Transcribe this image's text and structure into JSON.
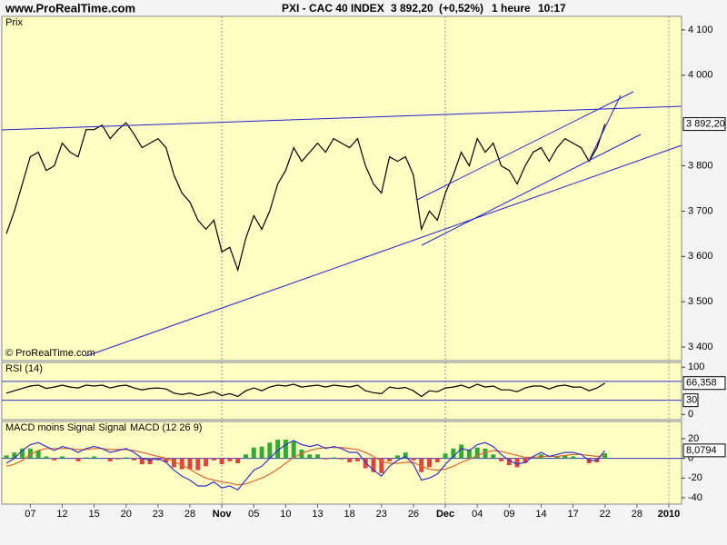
{
  "header": {
    "site": "www.ProRealTime.com",
    "title": "PXI - CAC 40 INDEX",
    "price": "3 892,20",
    "change": "(+0,52%)",
    "interval": "1 heure",
    "time": "10:17"
  },
  "chart_data": [
    {
      "type": "line",
      "title": "Prix",
      "watermark": "© ProRealTime.com",
      "color": "#000000",
      "values": [
        3650,
        3700,
        3760,
        3820,
        3830,
        3790,
        3800,
        3850,
        3830,
        3820,
        3880,
        3880,
        3890,
        3860,
        3880,
        3895,
        3870,
        3840,
        3850,
        3860,
        3840,
        3780,
        3740,
        3720,
        3680,
        3660,
        3680,
        3610,
        3620,
        3570,
        3640,
        3690,
        3660,
        3700,
        3760,
        3790,
        3840,
        3810,
        3830,
        3850,
        3830,
        3860,
        3850,
        3840,
        3860,
        3800,
        3760,
        3740,
        3820,
        3810,
        3820,
        3780,
        3660,
        3700,
        3680,
        3740,
        3780,
        3830,
        3800,
        3860,
        3830,
        3850,
        3800,
        3790,
        3760,
        3800,
        3830,
        3840,
        3810,
        3840,
        3860,
        3850,
        3840,
        3810,
        3840,
        3892.2,
        null,
        null,
        null,
        null,
        null,
        null,
        null,
        null
      ],
      "last_value": {
        "value": 3892.2,
        "label": "3 892,20"
      },
      "ylim": [
        3370,
        4130
      ],
      "yticks": [
        {
          "value": 3400,
          "label": "3 400"
        },
        {
          "value": 3500,
          "label": "3 500"
        },
        {
          "value": 3600,
          "label": "3 600"
        },
        {
          "value": 3700,
          "label": "3 700"
        },
        {
          "value": 3800,
          "label": "3 800"
        },
        {
          "value": 4000,
          "label": "4 000"
        },
        {
          "value": 4100,
          "label": "4 100"
        }
      ]
    },
    {
      "type": "line",
      "title": "RSI (14)",
      "color": "#000000",
      "level_color": "#3333cc",
      "values": [
        45,
        50,
        55,
        60,
        62,
        55,
        58,
        62,
        58,
        56,
        62,
        60,
        62,
        56,
        60,
        62,
        56,
        52,
        55,
        56,
        54,
        45,
        42,
        45,
        40,
        44,
        48,
        40,
        44,
        38,
        50,
        56,
        50,
        58,
        62,
        60,
        64,
        58,
        60,
        62,
        58,
        62,
        60,
        58,
        62,
        50,
        46,
        44,
        58,
        55,
        57,
        50,
        38,
        50,
        48,
        56,
        58,
        62,
        56,
        64,
        58,
        60,
        52,
        52,
        48,
        56,
        60,
        60,
        54,
        60,
        62,
        58,
        58,
        50,
        56,
        66.358,
        null,
        null,
        null,
        null,
        null,
        null,
        null,
        null
      ],
      "last_value": {
        "value": 66.358,
        "label": "66,358"
      },
      "levels": [
        30,
        70
      ],
      "ylim": [
        -11,
        110
      ],
      "yticks": [
        0,
        100
      ]
    },
    {
      "type": "macd",
      "zero_color": "#3333cc",
      "categories": [
        null,
        null,
        null,
        "07",
        null,
        null,
        null,
        "12",
        null,
        null,
        null,
        "15",
        null,
        null,
        null,
        "20",
        null,
        null,
        null,
        "23",
        null,
        null,
        null,
        "28",
        null,
        null,
        null,
        "Nov",
        null,
        null,
        null,
        "05",
        null,
        null,
        null,
        "10",
        null,
        null,
        null,
        "13",
        null,
        null,
        null,
        "18",
        null,
        null,
        null,
        "23",
        null,
        null,
        null,
        "26",
        null,
        null,
        null,
        "Dec",
        null,
        null,
        null,
        "04",
        null,
        null,
        null,
        "09",
        null,
        null,
        null,
        "14",
        null,
        null,
        null,
        "17",
        null,
        null,
        null,
        "22",
        null,
        null,
        null,
        "28",
        null,
        null,
        null,
        "2010"
      ],
      "series": [
        {
          "name": "MACD moins Signal",
          "color": "#33aa33",
          "negative_color": "#dd4444",
          "values": [
            3,
            6,
            10,
            10,
            8,
            2,
            -2,
            2,
            0,
            -3,
            1,
            2,
            0,
            -3,
            -1,
            1,
            -2,
            -6,
            -6,
            -2,
            -4,
            -9,
            -11,
            -11,
            -12,
            -8,
            -2,
            -6,
            -3,
            -5,
            4,
            11,
            12,
            16,
            19,
            19,
            17,
            9,
            4,
            4,
            -1,
            1,
            -1,
            -4,
            -3,
            -10,
            -14,
            -15,
            -3,
            3,
            6,
            -2,
            -14,
            -9,
            -4,
            5,
            10,
            14,
            9,
            11,
            10,
            4,
            -3,
            -7,
            -9,
            -5,
            1,
            4,
            0,
            2,
            3,
            2,
            0,
            -5,
            -4,
            5.08,
            null,
            null,
            null,
            null,
            null,
            null,
            null,
            null
          ]
        },
        {
          "name": "Signal",
          "color": "#dd6633",
          "values": [
            -8,
            -6,
            -2,
            4,
            8,
            10,
            10,
            10,
            10,
            9,
            9,
            10,
            10,
            9,
            9,
            9,
            8,
            6,
            4,
            2,
            0,
            -3,
            -7,
            -11,
            -16,
            -20,
            -22,
            -24,
            -25,
            -27,
            -26,
            -23,
            -20,
            -16,
            -11,
            -5,
            1,
            5,
            8,
            10,
            11,
            11,
            11,
            10,
            9,
            6,
            2,
            -3,
            -5,
            -5,
            -4,
            -4,
            -8,
            -11,
            -12,
            -11,
            -8,
            -4,
            -1,
            3,
            6,
            8,
            7,
            5,
            3,
            1,
            1,
            2,
            2,
            2,
            3,
            4,
            4,
            3,
            2,
            3,
            null,
            null,
            null,
            null,
            null,
            null,
            null,
            null
          ]
        },
        {
          "name": "MACD (12 26 9)",
          "color": "#3333cc",
          "values": [
            -5,
            0,
            8,
            14,
            16,
            12,
            8,
            12,
            10,
            6,
            10,
            12,
            10,
            6,
            8,
            10,
            6,
            0,
            -2,
            0,
            -4,
            -12,
            -18,
            -22,
            -28,
            -28,
            -24,
            -30,
            -28,
            -32,
            -22,
            -12,
            -8,
            0,
            8,
            14,
            18,
            14,
            12,
            14,
            10,
            12,
            10,
            6,
            6,
            -4,
            -12,
            -18,
            -8,
            -2,
            2,
            -6,
            -22,
            -20,
            -16,
            -6,
            2,
            10,
            8,
            14,
            16,
            12,
            4,
            -2,
            -6,
            -4,
            2,
            6,
            2,
            4,
            6,
            6,
            4,
            -2,
            -2,
            8.0794,
            null,
            null,
            null,
            null,
            null,
            null,
            null,
            null
          ]
        }
      ],
      "last_value": {
        "value": 8.0794,
        "label": "8,0794"
      },
      "ylim": [
        -46.5,
        37.5
      ],
      "yticks": [
        -40,
        -20,
        0,
        20
      ]
    }
  ]
}
